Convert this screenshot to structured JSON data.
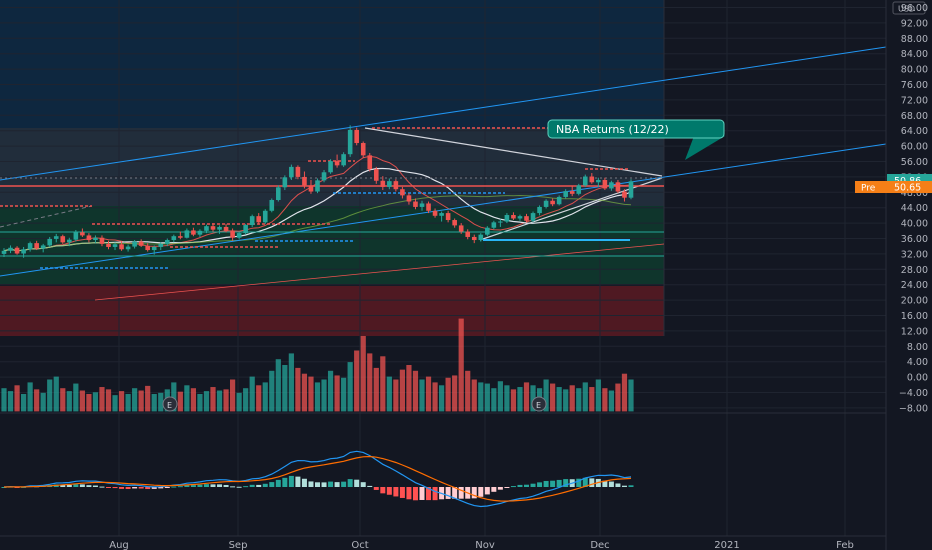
{
  "chart_data": {
    "type": "candlestick",
    "currency": "USD",
    "y_ticks": [
      "96.00",
      "92.00",
      "88.00",
      "84.00",
      "80.00",
      "76.00",
      "72.00",
      "68.00",
      "64.00",
      "60.00",
      "56.00",
      "52.00",
      "48.00",
      "44.00",
      "40.00",
      "36.00",
      "32.00",
      "28.00",
      "24.00",
      "20.00",
      "16.00",
      "12.00",
      "8.00",
      "4.00",
      "0.00",
      "−4.00",
      "−8.00"
    ],
    "ylim": [
      -8,
      96
    ],
    "x_ticks": [
      "Aug",
      "Sep",
      "Oct",
      "Nov",
      "Dec",
      "2021",
      "Feb"
    ],
    "last_price": {
      "label": "50.86",
      "value": 50.86,
      "color": "#26a69a"
    },
    "pre_market": {
      "tag": "Pre",
      "label": "50.65",
      "value": 50.65,
      "color": "#f57f17"
    },
    "annotation": {
      "text": "NBA Returns (12/22)",
      "color": "#00796b"
    },
    "earnings_markers": [
      "E",
      "E"
    ],
    "candles_ohlc": [
      [
        32.0,
        33.5,
        31.2,
        32.8
      ],
      [
        32.8,
        34.2,
        32.2,
        33.6
      ],
      [
        33.6,
        34.0,
        31.8,
        32.1
      ],
      [
        32.1,
        33.8,
        31.0,
        33.2
      ],
      [
        33.2,
        35.2,
        32.6,
        34.8
      ],
      [
        34.8,
        35.4,
        33.0,
        33.4
      ],
      [
        33.4,
        34.6,
        32.4,
        34.2
      ],
      [
        34.2,
        36.4,
        33.8,
        35.9
      ],
      [
        35.9,
        37.2,
        35.0,
        36.6
      ],
      [
        36.6,
        37.0,
        34.6,
        35.0
      ],
      [
        35.0,
        36.2,
        34.0,
        35.7
      ],
      [
        35.7,
        38.2,
        35.2,
        37.6
      ],
      [
        37.6,
        38.6,
        36.4,
        36.8
      ],
      [
        36.8,
        37.4,
        35.0,
        35.6
      ],
      [
        35.6,
        36.8,
        34.8,
        36.2
      ],
      [
        36.2,
        36.8,
        34.0,
        34.6
      ],
      [
        34.6,
        35.4,
        33.2,
        33.8
      ],
      [
        33.8,
        35.0,
        33.0,
        34.5
      ],
      [
        34.5,
        35.2,
        32.8,
        33.2
      ],
      [
        33.2,
        34.4,
        32.6,
        33.9
      ],
      [
        33.9,
        35.6,
        33.4,
        35.2
      ],
      [
        35.2,
        35.8,
        33.8,
        34.1
      ],
      [
        34.1,
        34.8,
        32.6,
        33.0
      ],
      [
        33.0,
        34.2,
        31.8,
        33.8
      ],
      [
        33.8,
        35.0,
        33.0,
        34.6
      ],
      [
        34.6,
        36.0,
        34.0,
        35.6
      ],
      [
        35.6,
        37.0,
        35.0,
        36.6
      ],
      [
        36.6,
        37.8,
        35.8,
        36.2
      ],
      [
        36.2,
        38.6,
        36.0,
        38.1
      ],
      [
        38.1,
        38.8,
        36.6,
        37.0
      ],
      [
        37.0,
        38.4,
        36.4,
        38.0
      ],
      [
        38.0,
        39.6,
        37.4,
        39.2
      ],
      [
        39.2,
        40.0,
        37.8,
        38.3
      ],
      [
        38.3,
        39.4,
        37.2,
        39.0
      ],
      [
        39.0,
        39.8,
        37.6,
        38.0
      ],
      [
        38.0,
        38.6,
        35.4,
        36.2
      ],
      [
        36.2,
        37.8,
        35.8,
        37.4
      ],
      [
        37.4,
        39.8,
        37.0,
        39.5
      ],
      [
        39.5,
        42.2,
        39.0,
        41.8
      ],
      [
        41.8,
        42.6,
        39.6,
        40.2
      ],
      [
        40.2,
        43.6,
        39.8,
        43.2
      ],
      [
        43.2,
        46.4,
        42.8,
        46.0
      ],
      [
        46.0,
        49.8,
        45.6,
        49.3
      ],
      [
        49.3,
        52.4,
        48.6,
        51.9
      ],
      [
        51.9,
        55.2,
        51.2,
        54.6
      ],
      [
        54.6,
        55.0,
        51.4,
        52.0
      ],
      [
        52.0,
        53.4,
        49.0,
        49.8
      ],
      [
        49.8,
        51.2,
        47.6,
        48.2
      ],
      [
        48.2,
        51.6,
        47.8,
        51.1
      ],
      [
        51.1,
        53.8,
        50.6,
        53.2
      ],
      [
        53.2,
        56.6,
        52.8,
        56.1
      ],
      [
        56.1,
        57.8,
        54.4,
        55.0
      ],
      [
        55.0,
        58.4,
        54.6,
        57.9
      ],
      [
        57.9,
        65.4,
        57.2,
        64.2
      ],
      [
        64.2,
        64.8,
        60.2,
        60.8
      ],
      [
        60.8,
        61.2,
        57.0,
        57.6
      ],
      [
        57.6,
        58.2,
        53.4,
        54.0
      ],
      [
        54.0,
        54.6,
        50.2,
        51.0
      ],
      [
        51.0,
        52.2,
        48.6,
        49.4
      ],
      [
        49.4,
        51.6,
        48.8,
        50.9
      ],
      [
        50.9,
        51.4,
        48.2,
        48.8
      ],
      [
        48.8,
        49.4,
        46.4,
        47.2
      ],
      [
        47.2,
        47.8,
        44.8,
        45.6
      ],
      [
        45.6,
        46.4,
        43.6,
        44.2
      ],
      [
        44.2,
        45.8,
        43.2,
        45.1
      ],
      [
        45.1,
        45.6,
        42.6,
        43.2
      ],
      [
        43.2,
        43.8,
        41.4,
        41.9
      ],
      [
        41.9,
        43.0,
        40.4,
        42.6
      ],
      [
        42.6,
        43.2,
        40.2,
        40.8
      ],
      [
        40.8,
        41.2,
        38.8,
        39.4
      ],
      [
        39.4,
        40.0,
        37.2,
        37.8
      ],
      [
        37.8,
        38.4,
        35.8,
        36.4
      ],
      [
        36.4,
        37.0,
        34.8,
        35.6
      ],
      [
        35.6,
        37.4,
        35.2,
        37.0
      ],
      [
        37.0,
        39.2,
        36.6,
        38.8
      ],
      [
        38.8,
        40.6,
        38.4,
        40.2
      ],
      [
        40.2,
        41.0,
        39.0,
        40.4
      ],
      [
        40.4,
        42.6,
        40.0,
        42.1
      ],
      [
        42.1,
        42.8,
        40.8,
        41.2
      ],
      [
        41.2,
        42.2,
        40.6,
        41.8
      ],
      [
        41.8,
        42.4,
        40.2,
        40.6
      ],
      [
        40.6,
        43.0,
        40.2,
        42.6
      ],
      [
        42.6,
        44.6,
        42.0,
        44.2
      ],
      [
        44.2,
        46.2,
        43.8,
        45.8
      ],
      [
        45.8,
        46.4,
        44.4,
        44.9
      ],
      [
        44.9,
        47.2,
        44.6,
        46.8
      ],
      [
        46.8,
        48.8,
        46.4,
        48.3
      ],
      [
        48.3,
        49.6,
        47.0,
        47.6
      ],
      [
        47.6,
        50.2,
        47.2,
        49.8
      ],
      [
        49.8,
        52.6,
        49.4,
        52.1
      ],
      [
        52.1,
        53.0,
        50.2,
        50.6
      ],
      [
        50.6,
        51.8,
        49.4,
        51.2
      ],
      [
        51.2,
        51.8,
        48.6,
        49.0
      ],
      [
        49.0,
        51.0,
        48.4,
        50.6
      ],
      [
        50.6,
        51.2,
        47.8,
        48.2
      ],
      [
        48.2,
        48.8,
        45.6,
        46.6
      ],
      [
        46.6,
        51.4,
        46.2,
        50.86
      ]
    ],
    "volume_relative": [
      0.4,
      0.35,
      0.45,
      0.3,
      0.5,
      0.38,
      0.32,
      0.55,
      0.6,
      0.4,
      0.35,
      0.48,
      0.36,
      0.3,
      0.33,
      0.42,
      0.38,
      0.28,
      0.35,
      0.3,
      0.4,
      0.36,
      0.44,
      0.3,
      0.32,
      0.38,
      0.5,
      0.34,
      0.45,
      0.4,
      0.3,
      0.35,
      0.42,
      0.36,
      0.38,
      0.55,
      0.32,
      0.4,
      0.6,
      0.45,
      0.5,
      0.7,
      0.9,
      0.8,
      1.0,
      0.75,
      0.65,
      0.6,
      0.5,
      0.55,
      0.7,
      0.62,
      0.58,
      0.85,
      1.05,
      1.3,
      1.0,
      0.75,
      0.95,
      0.6,
      0.55,
      0.72,
      0.8,
      0.7,
      0.55,
      0.6,
      0.5,
      0.45,
      0.58,
      0.62,
      1.6,
      0.7,
      0.55,
      0.5,
      0.48,
      0.4,
      0.52,
      0.45,
      0.38,
      0.42,
      0.5,
      0.45,
      0.4,
      0.55,
      0.48,
      0.42,
      0.38,
      0.45,
      0.4,
      0.5,
      0.42,
      0.55,
      0.4,
      0.36,
      0.48,
      0.65,
      0.55
    ]
  }
}
